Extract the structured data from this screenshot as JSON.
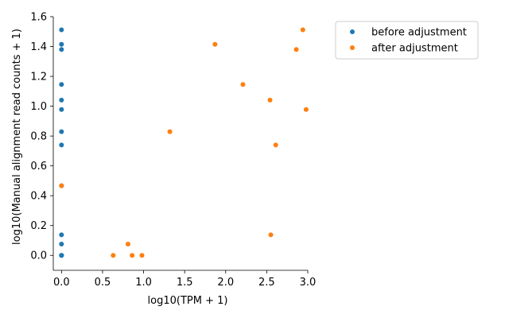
{
  "chart_data": {
    "type": "scatter",
    "xlabel": "log10(TPM + 1)",
    "ylabel": "log10(Manual alignment read counts + 1)",
    "xlim": [
      -0.1,
      3.0
    ],
    "ylim": [
      -0.1,
      1.6
    ],
    "xticks": [
      0.0,
      0.5,
      1.0,
      1.5,
      2.0,
      2.5,
      3.0
    ],
    "xtick_labels": [
      "0.0",
      "0.5",
      "1.0",
      "1.5",
      "2.0",
      "2.5",
      "3.0"
    ],
    "yticks": [
      0.0,
      0.2,
      0.4,
      0.6,
      0.8,
      1.0,
      1.2,
      1.4,
      1.6
    ],
    "ytick_labels": [
      "0.0",
      "0.2",
      "0.4",
      "0.6",
      "0.8",
      "1.0",
      "1.2",
      "1.4",
      "1.6"
    ],
    "grid": false,
    "legend_position": "outside-top-right",
    "series": [
      {
        "name": "before adjustment",
        "color": "#1f77b4",
        "points": [
          [
            0,
            1.512
          ],
          [
            0,
            1.415
          ],
          [
            0,
            1.38
          ],
          [
            0,
            1.146
          ],
          [
            0,
            1.041
          ],
          [
            0,
            0.978
          ],
          [
            0,
            0.829
          ],
          [
            0,
            0.74
          ],
          [
            0,
            0.467
          ],
          [
            0,
            0.138
          ],
          [
            0,
            0.076
          ],
          [
            0,
            0.0
          ],
          [
            0,
            0.0
          ],
          [
            0,
            0.0
          ]
        ]
      },
      {
        "name": "after adjustment",
        "color": "#ff7f0e",
        "points": [
          [
            2.94,
            1.512
          ],
          [
            1.87,
            1.415
          ],
          [
            2.86,
            1.38
          ],
          [
            2.21,
            1.146
          ],
          [
            2.54,
            1.041
          ],
          [
            2.98,
            0.978
          ],
          [
            1.32,
            0.829
          ],
          [
            2.61,
            0.74
          ],
          [
            0.0,
            0.467
          ],
          [
            2.55,
            0.138
          ],
          [
            0.81,
            0.076
          ],
          [
            0.63,
            0.0
          ],
          [
            0.86,
            0.0
          ],
          [
            0.98,
            0.0
          ]
        ]
      }
    ]
  }
}
